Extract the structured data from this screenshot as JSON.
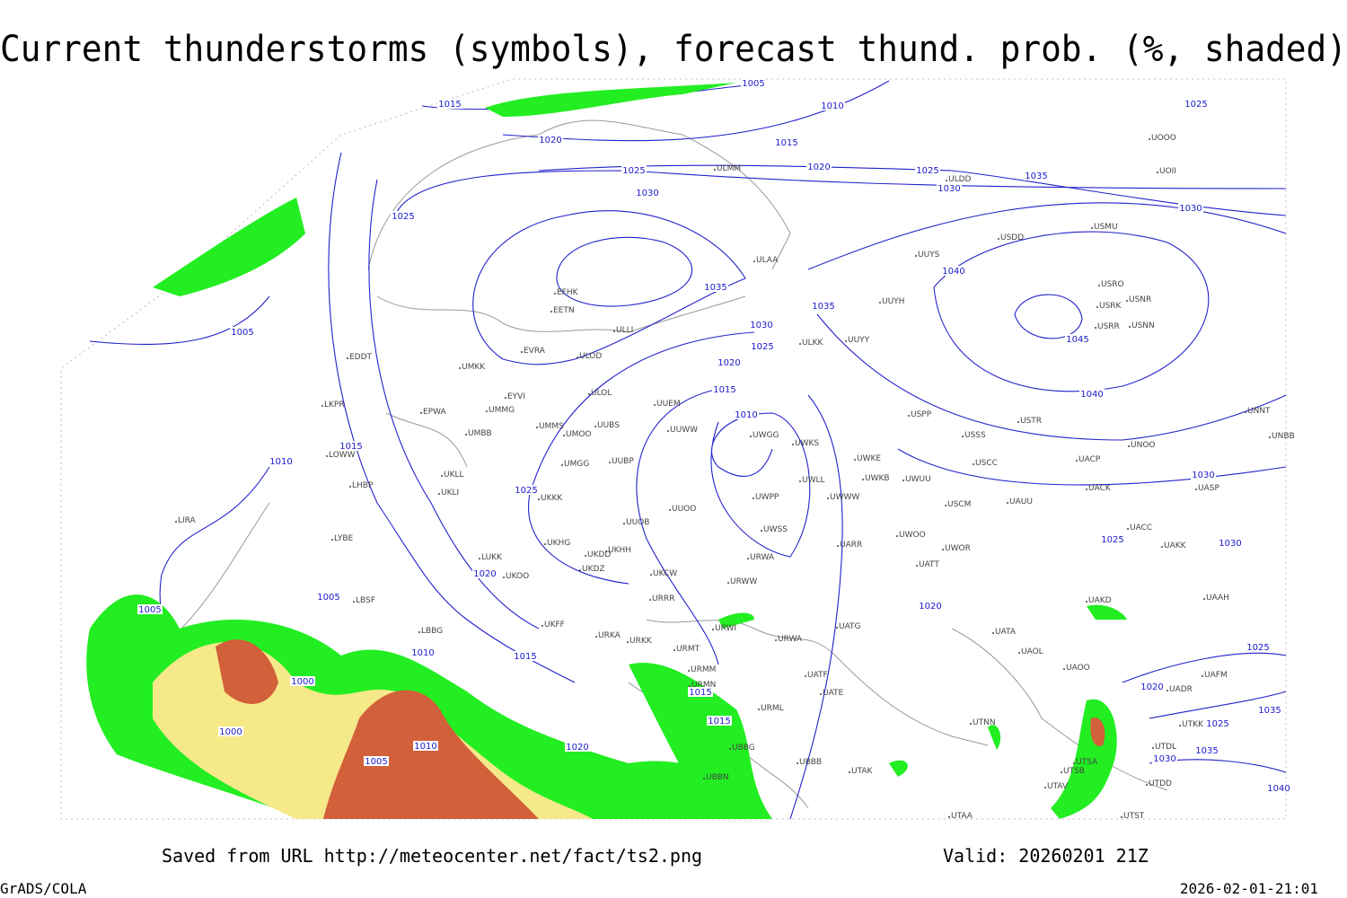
{
  "header": {
    "title": "Current thunderstorms (symbols), forecast thund. prob. (%, shaded)"
  },
  "map": {
    "stations": [
      "ULMM",
      "ULDD",
      "UOOO",
      "UOII",
      "USMU",
      "USDD",
      "UUYS",
      "ULAA",
      "EFHK",
      "EETN",
      "ULLI",
      "EVRA",
      "ULOD",
      "UUYH",
      "USRO",
      "USRK",
      "USNR",
      "USRR",
      "USNN",
      "ULKK",
      "UUYY",
      "EDDT",
      "UMKK",
      "EYVI",
      "ULOL",
      "UUEM",
      "EPWA",
      "UMMG",
      "LKPR",
      "UMMS",
      "UMOO",
      "UUBS",
      "UUWW",
      "UWGG",
      "UWKS",
      "USPP",
      "USTR",
      "USSS",
      "UNOO",
      "UNNT",
      "UNBB",
      "UMBB",
      "LOWW",
      "UWKE",
      "UWKB",
      "UWUU",
      "USCC",
      "UACP",
      "UASP",
      "UMGG",
      "UUBP",
      "UKLL",
      "UKLI",
      "UWLL",
      "UACK",
      "LHBP",
      "UKKK",
      "UWPP",
      "UWWW",
      "USCM",
      "UAUU",
      "UUOO",
      "LIRA",
      "UUOB",
      "UWSS",
      "UACC",
      "LYBE",
      "UWOO",
      "UKHG",
      "UKDD",
      "UKHH",
      "UARR",
      "UWOR",
      "UAKK",
      "LUKK",
      "UKDZ",
      "URWA",
      "UATT",
      "UKOO",
      "UKCW",
      "URWW",
      "UAKD",
      "LBSF",
      "UAAH",
      "URRR",
      "UKFF",
      "UATG",
      "LBBG",
      "URKA",
      "URKK",
      "URWI",
      "URWA",
      "UATA",
      "URMT",
      "UAOL",
      "UAOO",
      "URMM",
      "UATF",
      "UAFM",
      "URMN",
      "UATE",
      "UADR",
      "URML",
      "UTKK",
      "UTNN",
      "UTDL",
      "UBBB",
      "UTSA",
      "UTSB",
      "UTAK",
      "UTAV",
      "UTDD",
      "UTAA",
      "UTST",
      "UBBG",
      "UBBN"
    ],
    "isobar_labels": [
      1015,
      1005,
      1010,
      1020,
      1015,
      1025,
      1020,
      1025,
      1030,
      1035,
      1025,
      1030,
      1025,
      1030,
      1040,
      1035,
      1035,
      1045,
      1030,
      1025,
      1020,
      1015,
      1010,
      1040,
      1005,
      1015,
      1010,
      1025,
      1030,
      1025,
      1030,
      1020,
      1020,
      1005,
      1005,
      1010,
      1015,
      1025,
      1000,
      1015,
      1020,
      1000,
      1015,
      1010,
      1020,
      1025,
      1005,
      1035,
      1030,
      1035,
      1040
    ]
  },
  "footer": {
    "source": "Saved from URL http://meteocenter.net/fact/ts2.png",
    "valid": "Valid: 20260201 21Z",
    "software": "GrADS/COLA",
    "timestamp": "2026-02-01-21:01"
  }
}
